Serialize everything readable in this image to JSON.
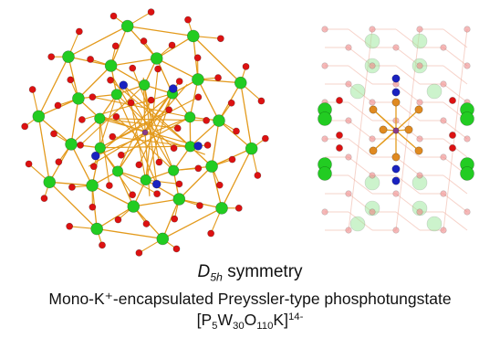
{
  "figure": {
    "left_panel": {
      "label": "",
      "view": "top view of cluster"
    },
    "right_panel": {
      "label": "",
      "view": "side view of cluster"
    },
    "atom_colors": {
      "tungsten": "#22cc22",
      "oxygen": "#dd1111",
      "phosphorus": "#e08a20",
      "potassium": "#8a3a8a",
      "bridge_blue": "#1a22c0",
      "bond": "#e39a1c"
    }
  },
  "caption": {
    "symmetry_main": "D",
    "symmetry_sub": "5h",
    "symmetry_suffix": " symmetry",
    "line1": "Mono-K⁺-encapsulated Preyssler-type phosphotungstate",
    "formula": {
      "open": "[P",
      "p_count": "5",
      "w": "W",
      "w_count": "30",
      "o": "O",
      "o_count": "110",
      "close": "K]",
      "charge": "14-"
    }
  }
}
